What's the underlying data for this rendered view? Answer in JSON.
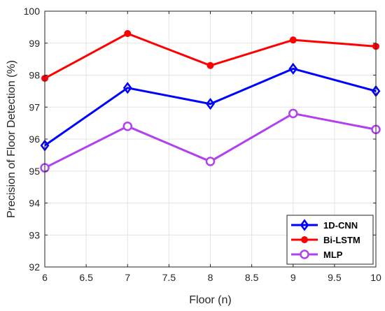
{
  "chart_data": {
    "type": "line",
    "xlabel": "Floor (n)",
    "ylabel": "Precision of Floor Detection (%)",
    "xlim": [
      6,
      10
    ],
    "ylim": [
      92,
      100
    ],
    "xticks": [
      "6",
      "6.5",
      "7",
      "7.5",
      "8",
      "8.5",
      "9",
      "9.5",
      "10"
    ],
    "yticks": [
      "92",
      "93",
      "94",
      "95",
      "96",
      "97",
      "98",
      "99",
      "100"
    ],
    "grid": true,
    "legend_position": "bottom-right",
    "x": [
      6,
      7,
      8,
      9,
      10
    ],
    "series": [
      {
        "name": "1D-CNN",
        "values": [
          95.8,
          97.6,
          97.1,
          98.2,
          97.5
        ],
        "color": "#0000FF",
        "marker": "diamond"
      },
      {
        "name": "Bi-LSTM",
        "values": [
          97.9,
          99.3,
          98.3,
          99.1,
          98.9
        ],
        "color": "#FF0000",
        "marker": "filled-circle"
      },
      {
        "name": "MLP",
        "values": [
          95.1,
          96.4,
          95.3,
          96.8,
          96.3
        ],
        "color": "#B040F0",
        "marker": "open-circle"
      }
    ]
  }
}
